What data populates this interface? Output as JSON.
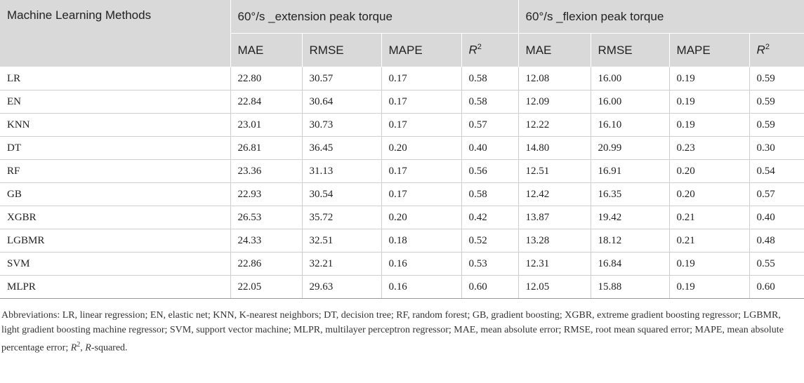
{
  "table": {
    "header": {
      "methods": "Machine Learning Methods",
      "group1": "60°/s _extension peak torque",
      "group2": "60°/s _flexion peak torque",
      "sub": [
        "MAE",
        "RMSE",
        "MAPE",
        "R"
      ],
      "r2_sup": "2"
    },
    "rows": [
      [
        "LR",
        "22.80",
        "30.57",
        "0.17",
        "0.58",
        "12.08",
        "16.00",
        "0.19",
        "0.59"
      ],
      [
        "EN",
        "22.84",
        "30.64",
        "0.17",
        "0.58",
        "12.09",
        "16.00",
        "0.19",
        "0.59"
      ],
      [
        "KNN",
        "23.01",
        "30.73",
        "0.17",
        "0.57",
        "12.22",
        "16.10",
        "0.19",
        "0.59"
      ],
      [
        "DT",
        "26.81",
        "36.45",
        "0.20",
        "0.40",
        "14.80",
        "20.99",
        "0.23",
        "0.30"
      ],
      [
        "RF",
        "23.36",
        "31.13",
        "0.17",
        "0.56",
        "12.51",
        "16.91",
        "0.20",
        "0.54"
      ],
      [
        "GB",
        "22.93",
        "30.54",
        "0.17",
        "0.58",
        "12.42",
        "16.35",
        "0.20",
        "0.57"
      ],
      [
        "XGBR",
        "26.53",
        "35.72",
        "0.20",
        "0.42",
        "13.87",
        "19.42",
        "0.21",
        "0.40"
      ],
      [
        "LGBMR",
        "24.33",
        "32.51",
        "0.18",
        "0.52",
        "13.28",
        "18.12",
        "0.21",
        "0.48"
      ],
      [
        "SVM",
        "22.86",
        "32.21",
        "0.16",
        "0.53",
        "12.31",
        "16.84",
        "0.19",
        "0.55"
      ],
      [
        "MLPR",
        "22.05",
        "29.63",
        "0.16",
        "0.60",
        "12.05",
        "15.88",
        "0.19",
        "0.60"
      ]
    ]
  },
  "footnote": {
    "text_before": "Abbreviations: LR, linear regression; EN, elastic net; KNN, K-nearest neighbors; DT, decision tree; RF, random forest; GB, gradient boosting; XGBR, extreme gradient boosting regressor; LGBMR, light gradient boosting machine regressor; SVM, support vector machine; MLPR, multilayer perceptron regressor; MAE, mean absolute error; RMSE, root mean squared error; MAPE, mean absolute percentage error; ",
    "r": "R",
    "sup": "2",
    "comma": ", ",
    "r_italic": "R",
    "text_after": "-squared."
  }
}
